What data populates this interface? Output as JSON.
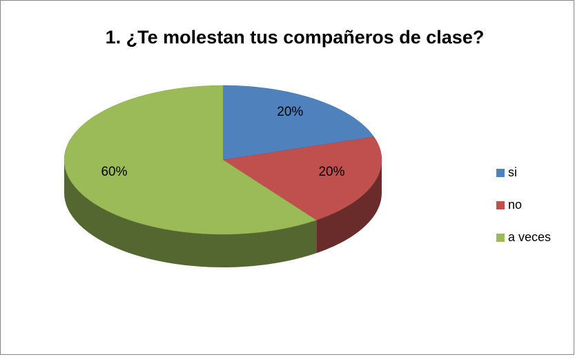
{
  "chart_data": {
    "type": "pie",
    "title": "1. ¿Te molestan tus compañeros de clase?",
    "categories": [
      "si",
      "no",
      "a veces"
    ],
    "values": [
      20,
      20,
      60
    ],
    "value_labels": [
      "20%",
      "20%",
      "60%"
    ],
    "colors": [
      "#4f81bd",
      "#c0504d",
      "#9bbb59"
    ],
    "legend": "right"
  }
}
